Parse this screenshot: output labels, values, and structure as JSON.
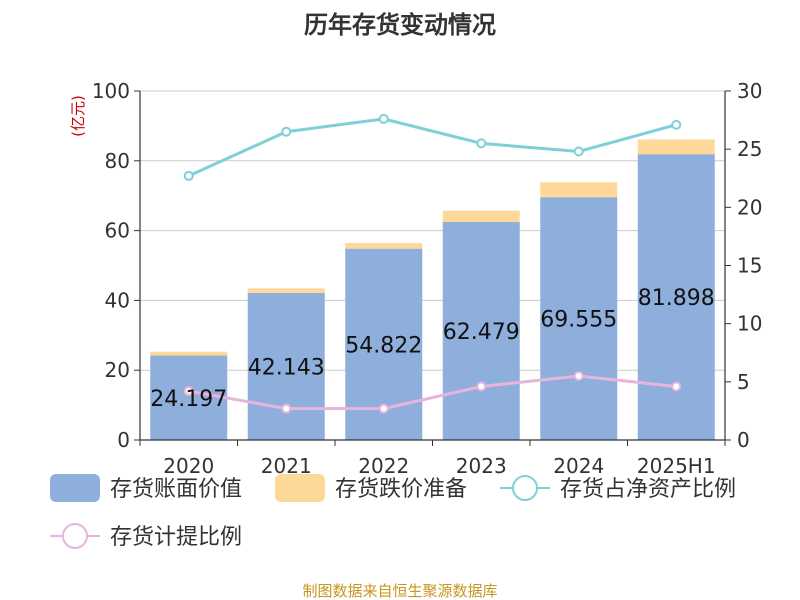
{
  "chart_data": {
    "type": "bar",
    "title": "历年存货变动情况",
    "categories": [
      "2020",
      "2021",
      "2022",
      "2023",
      "2024",
      "2025H1"
    ],
    "y_left": {
      "unit": "(亿元)",
      "ylim": [
        0,
        100
      ],
      "ticks": [
        0,
        20,
        40,
        60,
        80,
        100
      ]
    },
    "y_right": {
      "ylim": [
        0,
        30
      ],
      "ticks": [
        0,
        5,
        10,
        15,
        20,
        25,
        30
      ]
    },
    "series": [
      {
        "name": "存货账面价值",
        "type": "bar",
        "stack": "total",
        "axis": "left",
        "values": [
          24.197,
          42.143,
          54.822,
          62.479,
          69.555,
          81.898
        ],
        "labels": [
          "24.197",
          "42.143",
          "54.822",
          "62.479",
          "69.555",
          "81.898"
        ]
      },
      {
        "name": "存货跌价准备",
        "type": "bar",
        "stack": "total",
        "axis": "left",
        "values": [
          1.1,
          1.3,
          1.6,
          3.2,
          4.3,
          4.2
        ]
      },
      {
        "name": "存货占净资产比例",
        "type": "line",
        "axis": "right",
        "values": [
          22.7,
          26.5,
          27.6,
          25.5,
          24.8,
          27.1
        ]
      },
      {
        "name": "存货计提比例",
        "type": "line",
        "axis": "right",
        "values": [
          4.2,
          2.7,
          2.7,
          4.6,
          5.5,
          4.6
        ]
      }
    ],
    "colors": {
      "存货账面价值": "#8eaedb",
      "存货跌价准备": "#fdd898",
      "存货占净资产比例": "#7fd0d6",
      "存货计提比例": "#e8b4dc"
    },
    "legend": "bottom",
    "grid": true,
    "source": "制图数据来自恒生聚源数据库"
  }
}
